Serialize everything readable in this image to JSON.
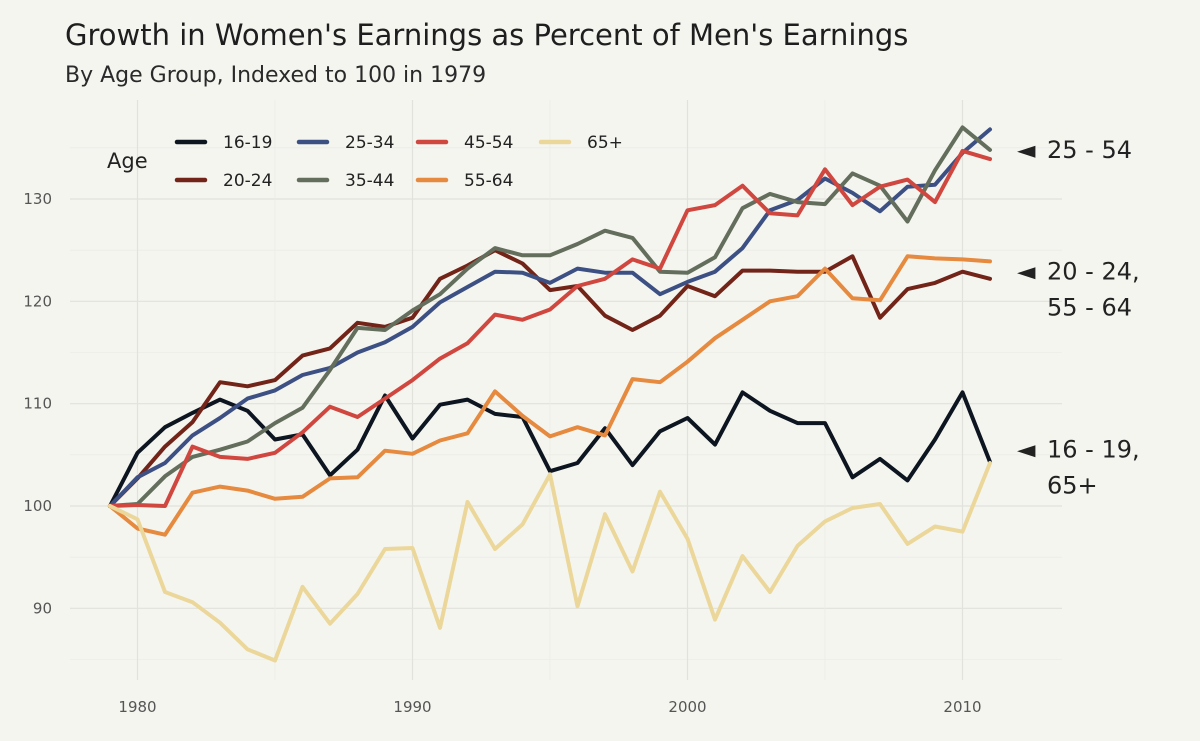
{
  "chart_data": {
    "type": "line",
    "title": "Growth in Women's Earnings as Percent of Men's Earnings",
    "subtitle": "By Age Group, Indexed to 100 in 1979",
    "xlabel": "",
    "ylabel": "",
    "xlim": [
      1979,
      2011
    ],
    "ylim": [
      85,
      137
    ],
    "x_ticks": [
      1980,
      1990,
      2000,
      2010
    ],
    "y_ticks": [
      90,
      100,
      110,
      120,
      130
    ],
    "grid": true,
    "legend": {
      "title": "Age",
      "placement": "top-left"
    },
    "x": [
      1979,
      1980,
      1981,
      1982,
      1983,
      1984,
      1985,
      1986,
      1987,
      1988,
      1989,
      1990,
      1991,
      1992,
      1993,
      1994,
      1995,
      1996,
      1997,
      1998,
      1999,
      2000,
      2001,
      2002,
      2003,
      2004,
      2005,
      2006,
      2007,
      2008,
      2009,
      2010,
      2011
    ],
    "series": [
      {
        "name": "16-19",
        "color": "#0c1520",
        "values": [
          100,
          105.2,
          107.7,
          109.1,
          110.4,
          109.3,
          106.5,
          107.0,
          103.0,
          105.5,
          110.8,
          106.6,
          109.9,
          110.4,
          109.0,
          108.7,
          103.4,
          104.2,
          107.6,
          104.0,
          107.3,
          108.6,
          106.0,
          111.1,
          109.3,
          108.1,
          108.1,
          102.8,
          104.6,
          102.5,
          106.5,
          111.1,
          104.3
        ]
      },
      {
        "name": "20-24",
        "color": "#722418",
        "values": [
          100,
          102.7,
          105.8,
          108.2,
          112.1,
          111.7,
          112.3,
          114.7,
          115.4,
          117.9,
          117.5,
          118.4,
          122.2,
          123.5,
          125.0,
          123.7,
          121.1,
          121.5,
          118.6,
          117.2,
          118.6,
          121.5,
          120.5,
          123.0,
          123.0,
          122.9,
          122.9,
          124.4,
          118.4,
          121.2,
          121.8,
          122.9,
          122.2
        ]
      },
      {
        "name": "25-34",
        "color": "#3d5083",
        "values": [
          100,
          102.8,
          104.2,
          106.9,
          108.6,
          110.5,
          111.3,
          112.8,
          113.5,
          115.0,
          116.0,
          117.5,
          119.9,
          121.4,
          122.9,
          122.8,
          121.8,
          123.2,
          122.8,
          122.8,
          120.7,
          121.9,
          122.9,
          125.2,
          128.9,
          129.9,
          132.0,
          130.6,
          128.8,
          131.2,
          131.4,
          134.5,
          136.8
        ]
      },
      {
        "name": "35-44",
        "color": "#646e5c",
        "values": [
          100,
          100.2,
          102.9,
          104.8,
          105.5,
          106.3,
          108.1,
          109.6,
          113.3,
          117.4,
          117.2,
          119.1,
          120.7,
          123.2,
          125.2,
          124.5,
          124.5,
          125.6,
          126.9,
          126.2,
          122.9,
          122.8,
          124.3,
          129.1,
          130.5,
          129.7,
          129.5,
          132.5,
          131.3,
          127.8,
          132.8,
          137.0,
          134.8
        ]
      },
      {
        "name": "45-54",
        "color": "#d0473f",
        "values": [
          100,
          100.1,
          100.0,
          105.8,
          104.8,
          104.6,
          105.2,
          107.2,
          109.7,
          108.7,
          110.5,
          112.3,
          114.4,
          115.9,
          118.7,
          118.2,
          119.2,
          121.5,
          122.2,
          124.1,
          123.2,
          128.9,
          129.4,
          131.3,
          128.6,
          128.4,
          132.9,
          129.4,
          131.2,
          131.9,
          129.7,
          134.7,
          133.9
        ]
      },
      {
        "name": "55-64",
        "color": "#e58a3f",
        "values": [
          100,
          97.8,
          97.2,
          101.3,
          101.9,
          101.5,
          100.7,
          100.9,
          102.7,
          102.8,
          105.4,
          105.1,
          106.4,
          107.1,
          111.2,
          108.8,
          106.8,
          107.7,
          106.9,
          112.4,
          112.1,
          114.1,
          116.4,
          118.2,
          120.0,
          120.5,
          123.2,
          120.3,
          120.1,
          124.4,
          124.2,
          124.1,
          123.9
        ]
      },
      {
        "name": "65+",
        "color": "#ecd79b",
        "values": [
          100,
          98.7,
          91.6,
          90.6,
          88.6,
          86.0,
          84.9,
          92.1,
          88.5,
          91.4,
          95.8,
          95.9,
          88.1,
          100.4,
          95.8,
          98.2,
          103.1,
          90.2,
          99.2,
          93.6,
          101.4,
          96.8,
          88.9,
          95.1,
          91.6,
          96.1,
          98.5,
          99.8,
          100.2,
          96.3,
          98.0,
          97.5,
          104.2
        ]
      }
    ],
    "annotations": [
      {
        "marker": "◄",
        "lines": [
          "25 - 54"
        ],
        "y": 134.8
      },
      {
        "marker": "◄",
        "lines": [
          "20 - 24,",
          "55 - 64"
        ],
        "y": 122.9
      },
      {
        "marker": "◄",
        "lines": [
          "16 - 19,",
          "65+"
        ],
        "y": 105.5
      }
    ]
  }
}
